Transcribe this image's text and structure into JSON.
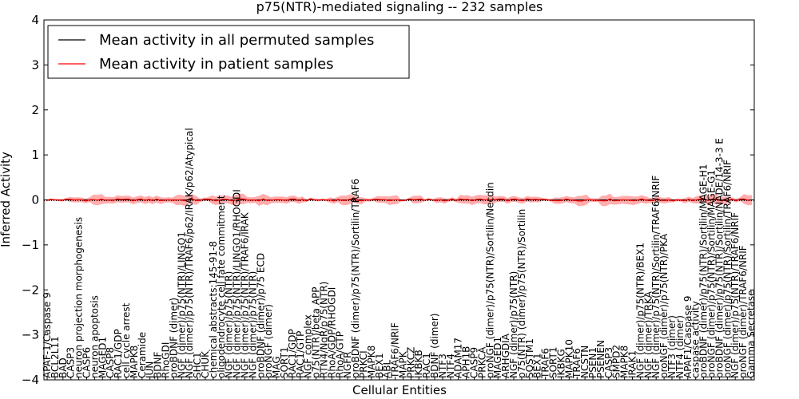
{
  "chart_data": {
    "type": "line",
    "title": "p75(NTR)-mediated signaling -- 232 samples",
    "xlabel": "Cellular Entities",
    "ylabel": "Inferred Activity",
    "ylim": [
      -4,
      4
    ],
    "yticks": [
      -4,
      -3,
      -2,
      -1,
      0,
      1,
      2,
      3,
      4
    ],
    "ytick_labels": [
      "−4",
      "−3",
      "−2",
      "−1",
      "0",
      "1",
      "2",
      "3",
      "4"
    ],
    "grid": false,
    "legend_position": "top-left",
    "series": [
      {
        "name": "Mean activity in all permuted samples",
        "color": "#000000",
        "values_note": "flat near zero",
        "baseline": 0.0
      },
      {
        "name": "Mean activity in patient samples",
        "color": "#ff0000",
        "baseline": 0.0
      }
    ],
    "band_color": "#ff0000",
    "categories": [
      "APAF-1/Caspase 9",
      "BCL2L11",
      "BAD",
      "CASP3",
      "neuron projection morphogenesis",
      "CASP6",
      "neuron apoptosis",
      "MAGED1",
      "CASP8",
      "RAC1/GDP",
      "cell cycle arrest",
      "MAPK8",
      "Ceramide",
      "JUN",
      "BDNF",
      "RhoGDI",
      "proBDNF (dimer)",
      "NGF (dimer)/p75(NTR)/LINGO1",
      "NGF (dimer)/p75(NTR)/TRAF6/p62/IRAK/p62/Atypical",
      "SHC1",
      "CHUK",
      "chemical abstracts:145-91-8",
      "oligodendrocyte cell fate commitment",
      "NGF (dimer)/p75(NTR)",
      "NGF (dimer)/p75(NTR)/LINGO1/RHOGDI",
      "NGF (dimer)/p75(NTR)/TRAF6/IRAK",
      "NGF (dimer)/p75(NTR)",
      "proBDNF (dimer)/p75 ECD",
      "proNGF (dimer)",
      "MAG",
      "SORT1",
      "RAC1/GDP",
      "RAC1/GTP",
      "NGF complex",
      "p75(NTR)/beta APP",
      "RTN4/NgR/p75(NTR)",
      "RhoA/GDP/RHOGDI",
      "RhoA/GTP",
      "NGFR",
      "proBDNF (dimer)/p75(NTR)/Sortilin/TRAF6",
      "PRKCI",
      "MAPK8",
      "BEX1",
      "ABL",
      "TRAF6/NRIF",
      "MAPK",
      "PRKCZ",
      "IKBKB",
      "RAC1",
      "BDNF (dimer)",
      "NTF3",
      "NTF4",
      "ADAM17",
      "APH1B",
      "CASP9",
      "PRKCA",
      "proNGF (dimer)/p75(NTR)/Sortilin/Necdin",
      "MAGED1",
      "ARHGDIA",
      "NGF (dimer)/p75(NTR)",
      "p75(NTR) (dimer)/p75(NTR)/Sortilin",
      "SQSTM1",
      "BEX1",
      "TRAF6",
      "SORT1",
      "IKBKG",
      "MAPK10",
      "TRAF6",
      "NCSTN",
      "PSEN1",
      "PSENEN",
      "CASP3",
      "SMPD2",
      "MAPK8",
      "IRAK1",
      "NGF (dimer)/p75(NTR)/BEX1",
      "NGF (dimer)/TRKA",
      "NGF (dimer)/p75(NTR)/Sortilin/TRAF6/NRIF",
      "proNGF (dimer)/p75(NTR)/PKA",
      "NTF3 (dimer)",
      "NTF4 (dimer)",
      "APAF1/Caspase 9",
      "caspase activity",
      "proBDNF (dimer)/p75(NTR)/Sortilin/MAGE-H1",
      "proNGF (dimer)/p75(NTR)/Sortilin/MAGE-G1",
      "proBDNF (dimer)/p75(NTR)/Sortilin/NADE/14-3-3 E",
      "proNGF (dimer)/p75(NTR)/Sortilin/TRAF6/NRIF",
      "NGF (dimer)/p75(NTR)/TRAF6/NRIF",
      "proNGF (dimer)/TRAF6/NRIF",
      "Gamma Secretase"
    ],
    "value_estimates": {
      "patient_mean_range": [
        -0.05,
        0.07
      ],
      "band_max_abs": 0.12
    }
  }
}
